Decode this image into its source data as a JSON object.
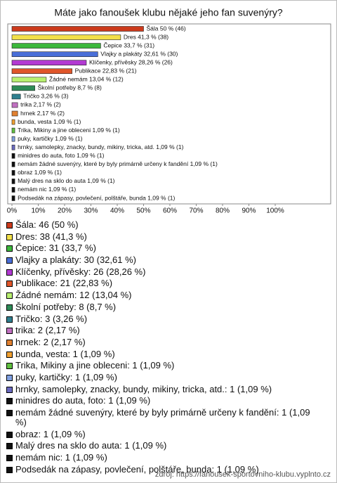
{
  "chart_data": {
    "type": "bar",
    "orientation": "horizontal",
    "title": "Máte jako fanoušek klubu nějaké jeho fan suvenýry?",
    "values": [
      50,
      41.3,
      33.7,
      32.61,
      28.26,
      22.83,
      13.04,
      8.7,
      3.26,
      2.17,
      2.17,
      1.09,
      1.09,
      1.09,
      1.09,
      1.09,
      1.09,
      1.09,
      1.09,
      1.09,
      1.09
    ],
    "value_labels": [
      "Šála 50 % (46)",
      "Dres 41,3 % (38)",
      "Čepice 33,7 % (31)",
      "Vlajky a plakáty 32,61 % (30)",
      "Klíčenky, přívěsky 28,26 % (26)",
      "Publikace 22,83 % (21)",
      "Žádné nemám 13,04 % (12)",
      "Školní potřeby 8,7 % (8)",
      "Tričko 3,26 % (3)",
      "trika 2,17 % (2)",
      "hrnek 2,17 % (2)",
      "bunda, vesta 1,09 % (1)",
      "Trika, Mikiny a jine obleceni 1,09 % (1)",
      "puky, kartičky 1,09 % (1)",
      "hrnky, samolepky, znacky, bundy, mikiny, tricka, atd. 1,09 % (1)",
      "minidres do auta, foto 1,09 % (1)",
      "nemám žádné suvenýry, které by byly primárně určeny k fandění 1,09 % (1)",
      "obraz 1,09 % (1)",
      "Malý dres na sklo do auta 1,09 % (1)",
      "nemám nic 1,09 % (1)",
      "Podsedák na zápasy, povlečení, polštáře, bunda 1,09 % (1)"
    ],
    "legend_labels": [
      "Šála: 46 (50 %)",
      "Dres: 38 (41,3 %)",
      "Čepice: 31 (33,7 %)",
      "Vlajky a plakáty: 30 (32,61 %)",
      "Klíčenky, přívěsky: 26 (28,26 %)",
      "Publikace: 21 (22,83 %)",
      "Žádné nemám: 12 (13,04 %)",
      "Školní potřeby: 8 (8,7 %)",
      "Tričko: 3 (3,26 %)",
      "trika: 2 (2,17 %)",
      "hrnek: 2 (2,17 %)",
      "bunda, vesta: 1 (1,09 %)",
      "Trika, Mikiny a jine obleceni: 1 (1,09 %)",
      "puky, kartičky: 1 (1,09 %)",
      "hrnky, samolepky, znacky, bundy, mikiny, tricka, atd.: 1 (1,09 %)",
      "minidres do auta, foto: 1 (1,09 %)",
      "nemám žádné suvenýry, které by byly primárně určeny k fandění: 1 (1,09 %)",
      "obraz: 1 (1,09 %)",
      "Malý dres na sklo do auta: 1 (1,09 %)",
      "nemám nic: 1 (1,09 %)",
      "Podsedák na zápasy, povlečení, polštáře, bunda: 1 (1,09 %)"
    ],
    "colors": [
      "#cc3a1c",
      "#f2e04a",
      "#3cb83c",
      "#4a6fd8",
      "#b23ad2",
      "#e0562a",
      "#b8f070",
      "#2e8b57",
      "#2f7f8f",
      "#c070c0",
      "#e08030",
      "#f0a030",
      "#60c040",
      "#80a0e0",
      "#6a6ac0",
      "#111111",
      "#111111",
      "#111111",
      "#111111",
      "#111111",
      "#111111"
    ],
    "xlim": [
      0,
      100
    ],
    "xticks": [
      {
        "value": 0,
        "label": "0%"
      },
      {
        "value": 10,
        "label": "10%"
      },
      {
        "value": 20,
        "label": "20%"
      },
      {
        "value": 30,
        "label": "30%"
      },
      {
        "value": 40,
        "label": "40%"
      },
      {
        "value": 50,
        "label": "50%"
      },
      {
        "value": 60,
        "label": "60%"
      },
      {
        "value": 70,
        "label": "70%"
      },
      {
        "value": 80,
        "label": "80%"
      },
      {
        "value": 90,
        "label": "90%"
      },
      {
        "value": 100,
        "label": "100%"
      }
    ],
    "grid": false,
    "source": "zdroj: https://fanousek-sportovniho-klubu.vyplnto.cz"
  }
}
